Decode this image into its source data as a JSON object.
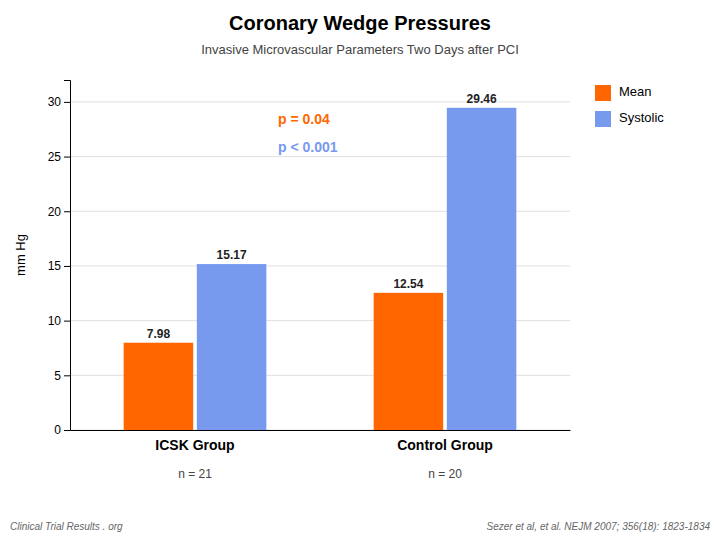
{
  "chart_data": {
    "type": "bar",
    "title": "Coronary Wedge Pressures",
    "subtitle": "Invasive Microvascular Parameters Two Days after PCI",
    "y_label": "mm Hg",
    "categories": [
      "ICSK Group",
      "Control Group"
    ],
    "n_labels": [
      "n = 21",
      "n = 20"
    ],
    "series": [
      {
        "name": "Mean",
        "color": "#FF6600",
        "values": [
          7.98,
          12.54
        ]
      },
      {
        "name": "Systolic",
        "color": "#7799EE",
        "values": [
          15.17,
          29.46
        ]
      }
    ],
    "ylim": [
      0,
      32
    ],
    "yticks": [
      0,
      5,
      10,
      15,
      20,
      25,
      30
    ],
    "grid": true,
    "legend": "upper right",
    "data_labels": true,
    "annotations": [
      {
        "text": "p = 0.04",
        "color": "#FF6600"
      },
      {
        "text": "p < 0.001",
        "color": "#7799EE"
      }
    ],
    "footer": [
      "Clinical Trial Results . org",
      "Sezer et al, et al. NEJM 2007; 356(18): 1823-1834"
    ]
  }
}
